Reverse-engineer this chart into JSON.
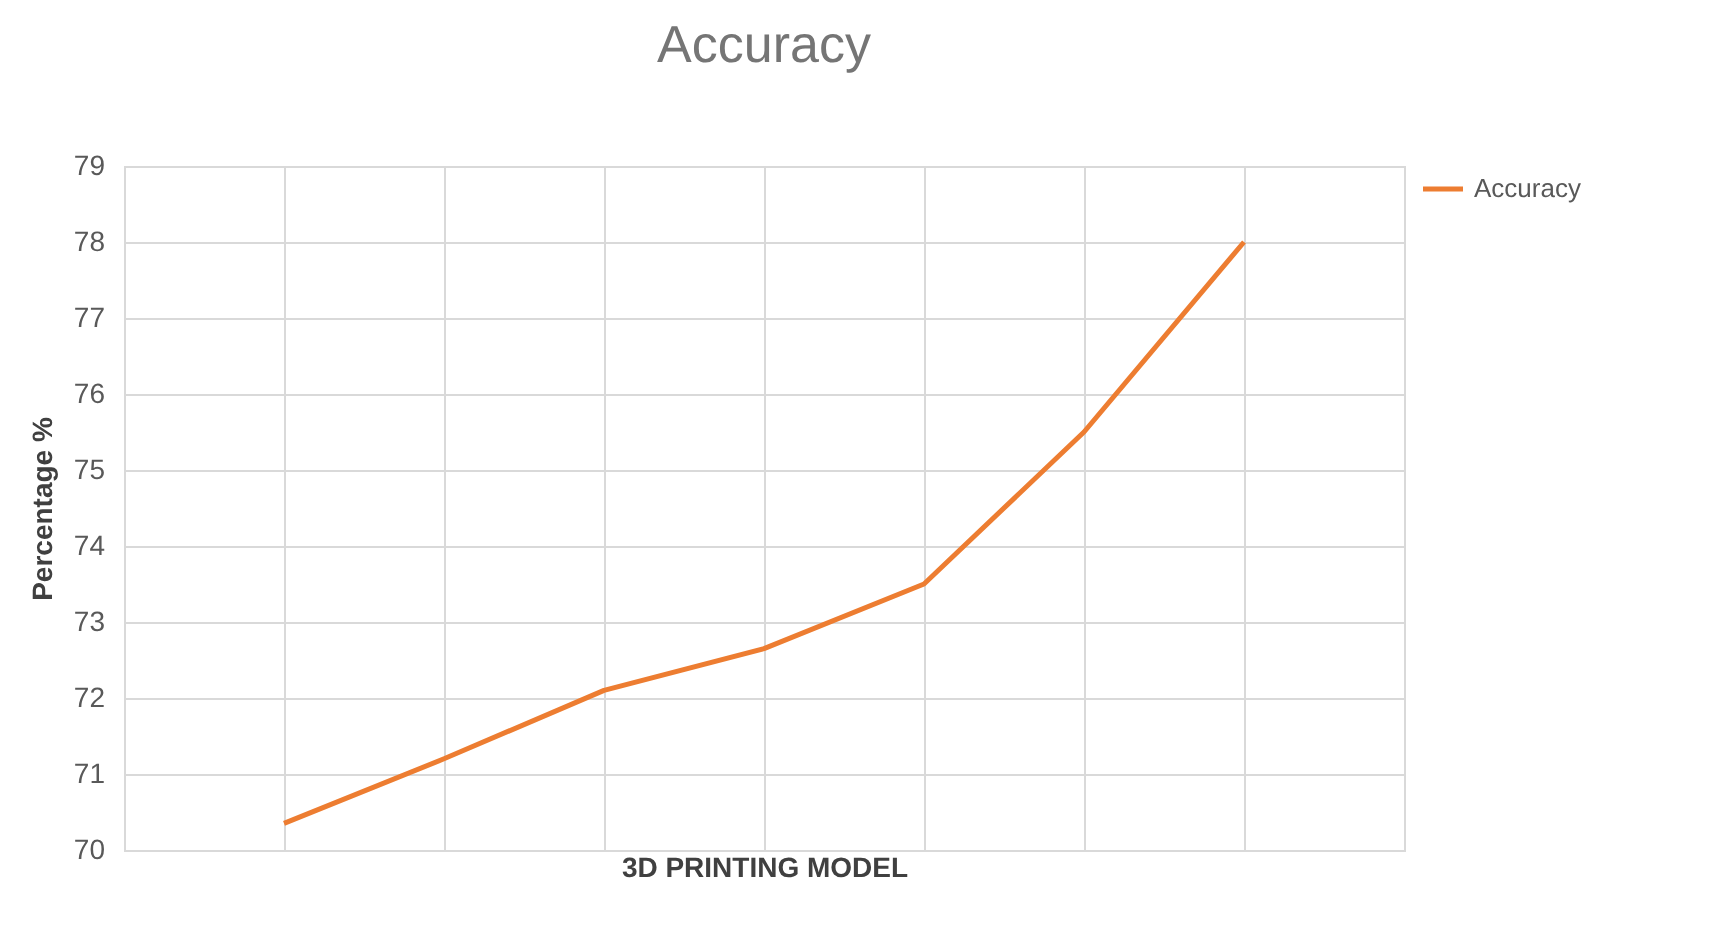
{
  "chart_data": {
    "type": "line",
    "title": "Accuracy",
    "xlabel": "3D PRINTING MODEL",
    "ylabel": "Percentage %",
    "categories": [
      null,
      null,
      null,
      null,
      null,
      null,
      null
    ],
    "series": [
      {
        "name": "Accuracy",
        "color": "#ed7d31",
        "values": [
          70.35,
          71.2,
          72.1,
          72.65,
          73.5,
          75.5,
          78
        ]
      }
    ],
    "ylim": [
      70,
      79
    ],
    "yticks": [
      70,
      71,
      72,
      73,
      74,
      75,
      76,
      77,
      78,
      79
    ],
    "grid": true,
    "legend": "top right",
    "tick_labels": "y"
  }
}
